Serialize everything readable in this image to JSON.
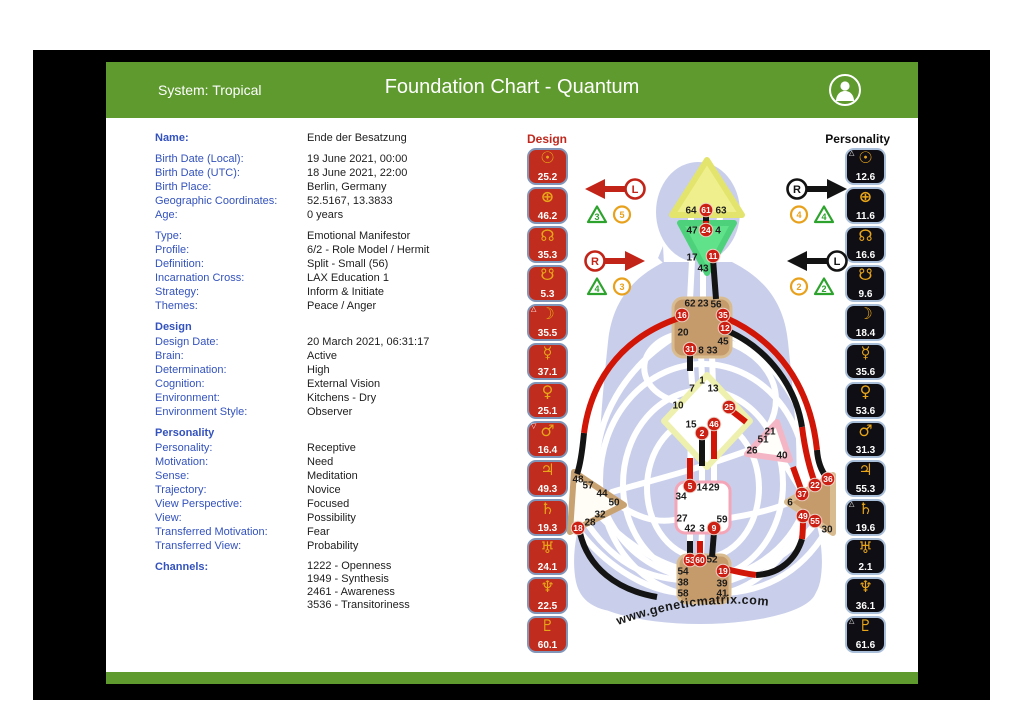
{
  "header": {
    "system": "System: Tropical",
    "title": "Foundation Chart - Quantum",
    "avatar_icon": "person-icon"
  },
  "footer": {
    "bar_color": "#5e9a2e"
  },
  "info": {
    "sections": [
      {
        "rows": [
          {
            "label": "Name:",
            "value": "Ende der Besatzung",
            "em": true
          }
        ]
      },
      {
        "rows": [
          {
            "label": "Birth Date (Local):",
            "value": "19 June 2021, 00:00"
          },
          {
            "label": "Birth Date (UTC):",
            "value": "18 June 2021, 22:00"
          },
          {
            "label": "Birth Place:",
            "value": "Berlin, Germany"
          },
          {
            "label": "Geographic Coordinates:",
            "value": "52.5167, 13.3833"
          },
          {
            "label": "Age:",
            "value": "0 years"
          }
        ]
      },
      {
        "rows": [
          {
            "label": "Type:",
            "value": "Emotional Manifestor"
          },
          {
            "label": "Profile:",
            "value": "6/2 - Role Model / Hermit"
          },
          {
            "label": "Definition:",
            "value": "Split - Small (56)"
          },
          {
            "label": "Incarnation Cross:",
            "value": "LAX Education 1"
          },
          {
            "label": "Strategy:",
            "value": "Inform & Initiate"
          },
          {
            "label": "Themes:",
            "value": "Peace / Anger"
          }
        ]
      },
      {
        "heading": "Design",
        "rows": [
          {
            "label": "Design Date:",
            "value": "20 March 2021, 06:31:17"
          },
          {
            "label": "Brain:",
            "value": "Active"
          },
          {
            "label": "Determination:",
            "value": "High"
          },
          {
            "label": "Cognition:",
            "value": "External Vision"
          },
          {
            "label": "Environment:",
            "value": "Kitchens - Dry"
          },
          {
            "label": "Environment Style:",
            "value": "Observer"
          }
        ]
      },
      {
        "heading": "Personality",
        "rows": [
          {
            "label": "Personality:",
            "value": "Receptive"
          },
          {
            "label": "Motivation:",
            "value": "Need"
          },
          {
            "label": "Sense:",
            "value": "Meditation"
          },
          {
            "label": "Trajectory:",
            "value": "Novice"
          },
          {
            "label": "View Perspective:",
            "value": "Focused"
          },
          {
            "label": "View:",
            "value": "Possibility"
          },
          {
            "label": "Transferred Motivation:",
            "value": "Fear"
          },
          {
            "label": "Transferred View:",
            "value": "Probability"
          }
        ]
      },
      {
        "rows": [
          {
            "label": "Channels:",
            "em": true,
            "values": [
              "1222 - Openness",
              "1949 - Synthesis",
              "2461 - Awareness",
              "3536 - Transitoriness"
            ]
          }
        ]
      }
    ]
  },
  "design": {
    "label": "Design",
    "color": "#c0281e",
    "planets": [
      {
        "planet": "sun",
        "glyph": "☉",
        "value": "25.2"
      },
      {
        "planet": "earth",
        "glyph": "⊕",
        "value": "46.2"
      },
      {
        "planet": "north-node",
        "glyph": "☊",
        "value": "35.3"
      },
      {
        "planet": "south-node",
        "glyph": "☋",
        "value": "5.3"
      },
      {
        "planet": "moon",
        "glyph": "☽",
        "value": "35.5",
        "marker": "△"
      },
      {
        "planet": "mercury",
        "glyph": "☿",
        "value": "37.1"
      },
      {
        "planet": "venus",
        "glyph": "♀",
        "value": "25.1"
      },
      {
        "planet": "mars",
        "glyph": "♂",
        "value": "16.4",
        "marker": "▽"
      },
      {
        "planet": "jupiter",
        "glyph": "♃",
        "value": "49.3"
      },
      {
        "planet": "saturn",
        "glyph": "♄",
        "value": "19.3"
      },
      {
        "planet": "uranus",
        "glyph": "♅",
        "value": "24.1"
      },
      {
        "planet": "neptune",
        "glyph": "♆",
        "value": "22.5"
      },
      {
        "planet": "pluto",
        "glyph": "♇",
        "value": "60.1"
      }
    ]
  },
  "personality": {
    "label": "Personality",
    "color": "#0d0d0d",
    "planets": [
      {
        "planet": "sun",
        "glyph": "☉",
        "value": "12.6",
        "marker": "△"
      },
      {
        "planet": "earth",
        "glyph": "⊕",
        "value": "11.6"
      },
      {
        "planet": "north-node",
        "glyph": "☊",
        "value": "16.6"
      },
      {
        "planet": "south-node",
        "glyph": "☋",
        "value": "9.6"
      },
      {
        "planet": "moon",
        "glyph": "☽",
        "value": "18.4"
      },
      {
        "planet": "mercury",
        "glyph": "☿",
        "value": "35.6"
      },
      {
        "planet": "venus",
        "glyph": "♀",
        "value": "53.6"
      },
      {
        "planet": "mars",
        "glyph": "♂",
        "value": "31.3"
      },
      {
        "planet": "jupiter",
        "glyph": "♃",
        "value": "55.3"
      },
      {
        "planet": "saturn",
        "glyph": "♄",
        "value": "19.6",
        "marker": "△"
      },
      {
        "planet": "uranus",
        "glyph": "♅",
        "value": "2.1"
      },
      {
        "planet": "neptune",
        "glyph": "♆",
        "value": "36.1"
      },
      {
        "planet": "pluto",
        "glyph": "♇",
        "value": "61.6",
        "marker": "△"
      }
    ]
  },
  "arrows": {
    "design": {
      "color": "#c22418",
      "groups": [
        {
          "letter": "L",
          "direction": "left",
          "badges": [
            {
              "shape": "triangle",
              "color": "#2da32d",
              "value": "3"
            },
            {
              "shape": "circle",
              "color": "#e8a11c",
              "value": "5"
            }
          ]
        },
        {
          "letter": "R",
          "direction": "right",
          "badges": [
            {
              "shape": "triangle",
              "color": "#2da32d",
              "value": "4"
            },
            {
              "shape": "circle",
              "color": "#e8a11c",
              "value": "3"
            }
          ]
        }
      ]
    },
    "personality": {
      "color": "#131313",
      "groups": [
        {
          "letter": "R",
          "direction": "right",
          "badges": [
            {
              "shape": "circle",
              "color": "#e8a11c",
              "value": "4"
            },
            {
              "shape": "triangle",
              "color": "#2da32d",
              "value": "4"
            }
          ]
        },
        {
          "letter": "L",
          "direction": "left",
          "badges": [
            {
              "shape": "circle",
              "color": "#e8a11c",
              "value": "2"
            },
            {
              "shape": "triangle",
              "color": "#2da32d",
              "value": "2"
            }
          ]
        }
      ]
    }
  },
  "bodygraph": {
    "watermark": "www.geneticmatrix.com",
    "activated_color": "#cd2015",
    "design_channel_color": "#d11507",
    "personality_channel_color": "#141414",
    "activated_gates": [
      61,
      24,
      11,
      16,
      35,
      12,
      31,
      25,
      46,
      2,
      5,
      9,
      18,
      53,
      60,
      19,
      22,
      36,
      37,
      49,
      55
    ],
    "defined_channels": [
      "12-22",
      "19-49",
      "24-61",
      "35-36"
    ],
    "centers": {
      "head": {
        "gates": [
          64,
          61,
          63
        ]
      },
      "ajna": {
        "gates": [
          47,
          24,
          4,
          17,
          11,
          43
        ]
      },
      "throat": {
        "gates": [
          62,
          23,
          56,
          16,
          20,
          35,
          12,
          45,
          31,
          8,
          33
        ]
      },
      "g_center": {
        "gates": [
          1,
          7,
          13,
          10,
          25,
          15,
          46,
          2
        ]
      },
      "heart": {
        "gates": [
          21,
          51,
          26,
          40
        ]
      },
      "spleen": {
        "gates": [
          48,
          57,
          44,
          50,
          32,
          28,
          18
        ]
      },
      "sacral": {
        "gates": [
          5,
          14,
          29,
          34,
          27,
          42,
          3,
          9,
          59
        ]
      },
      "solar_plexus": {
        "gates": [
          22,
          36,
          37,
          6,
          49,
          55,
          30
        ]
      },
      "root": {
        "gates": [
          53,
          60,
          52,
          54,
          19,
          38,
          39,
          58,
          41
        ]
      }
    }
  }
}
